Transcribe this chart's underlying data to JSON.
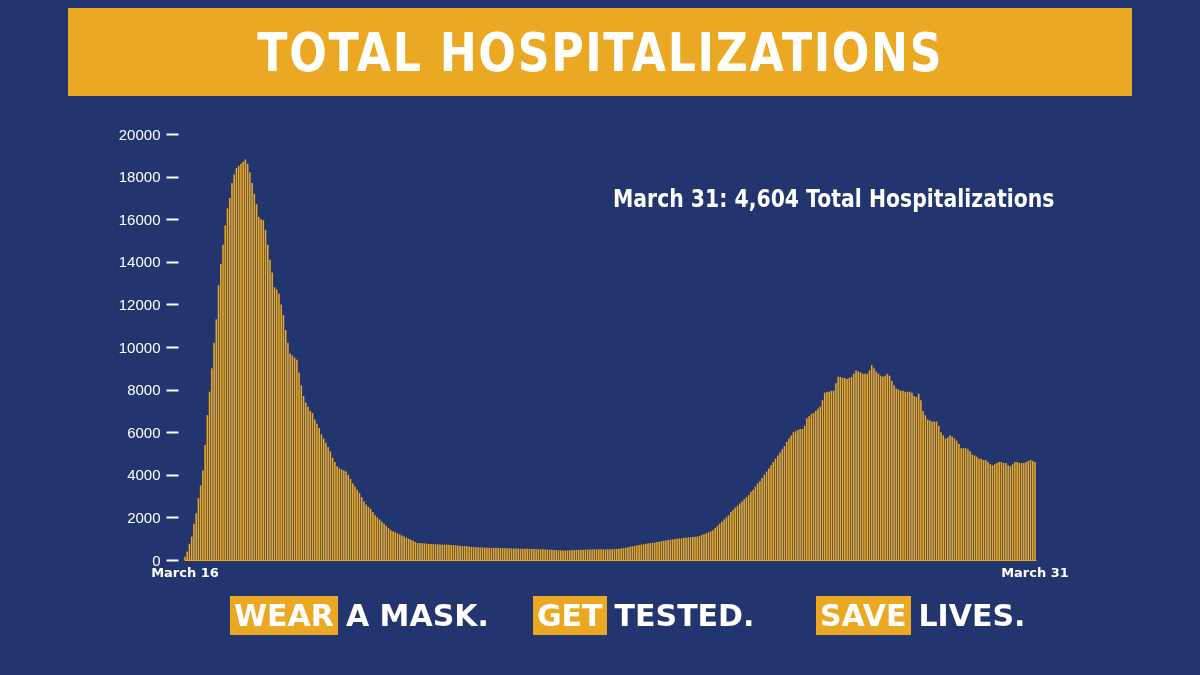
{
  "chart_data": {
    "type": "bar",
    "title": "TOTAL HOSPITALIZATIONS",
    "annotations": [
      "March 31: 4,604 Total Hospitalizations",
      "WEAR A MASK.",
      "GET TESTED.",
      "SAVE LIVES."
    ],
    "color": "#eba923",
    "ylim": [
      0,
      20000
    ],
    "yticks": [
      0,
      2000,
      4000,
      6000,
      8000,
      10000,
      12000,
      14000,
      16000,
      18000,
      20000
    ],
    "categories": [
      "March 16",
      null,
      null,
      null,
      null,
      null,
      null,
      null,
      null,
      null,
      null,
      null,
      null,
      null,
      null,
      null,
      null,
      null,
      null,
      null,
      null,
      null,
      null,
      null,
      null,
      null,
      null,
      null,
      null,
      null,
      null,
      null,
      null,
      null,
      null,
      null,
      null,
      null,
      null,
      null,
      null,
      null,
      null,
      null,
      null,
      null,
      null,
      null,
      null,
      null,
      null,
      null,
      null,
      null,
      null,
      null,
      null,
      null,
      null,
      null,
      null,
      null,
      null,
      null,
      null,
      null,
      null,
      null,
      null,
      null,
      null,
      null,
      null,
      null,
      null,
      null,
      null,
      null,
      null,
      null,
      null,
      null,
      null,
      null,
      null,
      null,
      null,
      null,
      null,
      null,
      null,
      null,
      null,
      null,
      null,
      null,
      null,
      null,
      null,
      null,
      null,
      null,
      null,
      null,
      null,
      null,
      null,
      null,
      null,
      null,
      null,
      null,
      null,
      null,
      null,
      null,
      null,
      null,
      null,
      null,
      null,
      null,
      null,
      null,
      null,
      null,
      null,
      null,
      null,
      null,
      null,
      null,
      null,
      null,
      null,
      null,
      null,
      null,
      null,
      null,
      null,
      null,
      null,
      null,
      null,
      null,
      null,
      null,
      null,
      null,
      null,
      null,
      null,
      null,
      null,
      null,
      null,
      null,
      null,
      null,
      null,
      null,
      null,
      null,
      null,
      null,
      null,
      null,
      null,
      null,
      null,
      null,
      null,
      null,
      null,
      null,
      null,
      null,
      null,
      null,
      null,
      null,
      null,
      null,
      null,
      null,
      null,
      null,
      null,
      null,
      null,
      null,
      null,
      null,
      null,
      null,
      null,
      null,
      null,
      null,
      null,
      null,
      null,
      null,
      null,
      null,
      null,
      null,
      null,
      null,
      null,
      null,
      null,
      null,
      null,
      null,
      null,
      null,
      null,
      null,
      null,
      null,
      null,
      null,
      null,
      null,
      null,
      null,
      null,
      null,
      null,
      null,
      null,
      null,
      null,
      null,
      null,
      null,
      null,
      null,
      null,
      null,
      null,
      null,
      null,
      null,
      null,
      null,
      null,
      null,
      null,
      null,
      null,
      null,
      null,
      null,
      null,
      null,
      null,
      null,
      null,
      null,
      null,
      null,
      null,
      null,
      null,
      null,
      null,
      null,
      null,
      null,
      null,
      null,
      null,
      null,
      null,
      null,
      null,
      null,
      null,
      null,
      null,
      null,
      null,
      null,
      null,
      null,
      null,
      null,
      null,
      null,
      null,
      null,
      null,
      null,
      null,
      null,
      null,
      null,
      null,
      null,
      null,
      null,
      null,
      null,
      null,
      null,
      null,
      null,
      null,
      null,
      null,
      null,
      null,
      null,
      null,
      null,
      null,
      null,
      null,
      null,
      null,
      null,
      null,
      null,
      null,
      null,
      null,
      null,
      null,
      null,
      null,
      null,
      null,
      null,
      null,
      null,
      null,
      null,
      null,
      null,
      null,
      null,
      null,
      null,
      null,
      null,
      null,
      null,
      null,
      null,
      null,
      null,
      null,
      null,
      null,
      null,
      null,
      null,
      null,
      null,
      null,
      null,
      null,
      null,
      null,
      null,
      null,
      null,
      null,
      null,
      null,
      null,
      null,
      null,
      null,
      null,
      null,
      null,
      "March 31"
    ],
    "values": [
      150,
      400,
      750,
      1100,
      1700,
      2200,
      2900,
      3500,
      4200,
      5400,
      6800,
      7900,
      9000,
      10200,
      11300,
      12900,
      13900,
      14800,
      15700,
      16500,
      17000,
      17700,
      18100,
      18400,
      18500,
      18600,
      18700,
      18800,
      18600,
      18200,
      17700,
      17200,
      16700,
      16100,
      16000,
      15950,
      15500,
      14800,
      14100,
      13500,
      12800,
      12700,
      12500,
      12000,
      11500,
      10800,
      10200,
      9700,
      9600,
      9500,
      9400,
      8800,
      8200,
      7700,
      7400,
      7200,
      7000,
      6900,
      6600,
      6400,
      6200,
      5900,
      5700,
      5500,
      5300,
      5100,
      4800,
      4600,
      4400,
      4300,
      4250,
      4200,
      4150,
      4000,
      3800,
      3600,
      3450,
      3300,
      3150,
      2950,
      2750,
      2600,
      2500,
      2400,
      2250,
      2100,
      2000,
      1900,
      1800,
      1700,
      1600,
      1500,
      1400,
      1350,
      1300,
      1250,
      1200,
      1150,
      1100,
      1050,
      1000,
      950,
      900,
      850,
      800,
      800,
      790,
      780,
      770,
      750,
      750,
      740,
      740,
      730,
      730,
      720,
      730,
      720,
      720,
      710,
      700,
      690,
      680,
      670,
      650,
      650,
      640,
      630,
      620,
      610,
      600,
      600,
      590,
      590,
      580,
      580,
      580,
      570,
      570,
      570,
      560,
      560,
      560,
      550,
      550,
      550,
      540,
      540,
      540,
      540,
      530,
      530,
      530,
      530,
      530,
      520,
      520,
      510,
      510,
      500,
      500,
      490,
      490,
      480,
      480,
      470,
      470,
      460,
      460,
      450,
      450,
      450,
      460,
      460,
      470,
      470,
      480,
      480,
      480,
      490,
      490,
      490,
      490,
      500,
      500,
      500,
      500,
      500,
      500,
      500,
      510,
      510,
      520,
      520,
      530,
      540,
      560,
      580,
      600,
      620,
      640,
      660,
      680,
      700,
      720,
      740,
      760,
      770,
      790,
      800,
      820,
      840,
      860,
      880,
      900,
      920,
      940,
      950,
      970,
      990,
      1000,
      1010,
      1020,
      1040,
      1050,
      1060,
      1070,
      1080,
      1090,
      1100,
      1130,
      1170,
      1210,
      1250,
      1300,
      1350,
      1400,
      1500,
      1600,
      1700,
      1800,
      1900,
      2000,
      2100,
      2250,
      2350,
      2450,
      2550,
      2650,
      2750,
      2850,
      2950,
      3050,
      3200,
      3300,
      3450,
      3600,
      3700,
      3850,
      4000,
      4150,
      4300,
      4450,
      4600,
      4750,
      4900,
      5050,
      5200,
      5350,
      5550,
      5700,
      5850,
      6000,
      6050,
      6100,
      6150,
      6150,
      6300,
      6650,
      6750,
      6850,
      6900,
      7000,
      7100,
      7200,
      7500,
      7850,
      7900,
      7900,
      7950,
      7950,
      8300,
      8600,
      8600,
      8550,
      8550,
      8500,
      8550,
      8600,
      8750,
      8900,
      8850,
      8800,
      8750,
      8750,
      8750,
      8900,
      9150,
      9000,
      8850,
      8750,
      8650,
      8600,
      8650,
      8750,
      8650,
      8400,
      8200,
      8050,
      8000,
      7950,
      7950,
      7900,
      7900,
      7900,
      7850,
      7700,
      7650,
      7800,
      7500,
      7000,
      6800,
      6600,
      6550,
      6500,
      6500,
      6500,
      6300,
      6000,
      5850,
      5700,
      5750,
      5850,
      5800,
      5700,
      5600,
      5450,
      5250,
      5250,
      5250,
      5200,
      5100,
      4950,
      4900,
      4850,
      4750,
      4750,
      4700,
      4700,
      4600,
      4500,
      4450,
      4500,
      4550,
      4600,
      4600,
      4550,
      4550,
      4450,
      4400,
      4500,
      4600,
      4600,
      4550,
      4550,
      4550,
      4600,
      4650,
      4700,
      4650,
      4604
    ]
  }
}
